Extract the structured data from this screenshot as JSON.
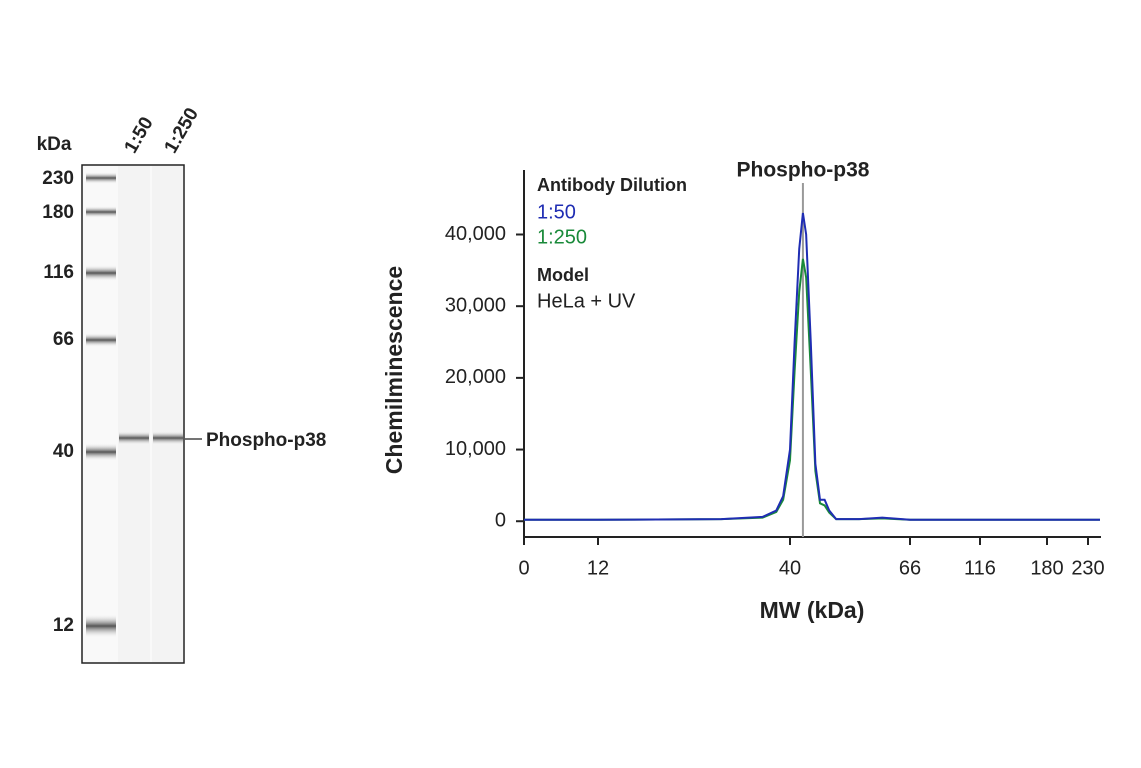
{
  "blot": {
    "unit_label": "kDa",
    "lanes": [
      "1:50",
      "1:250"
    ],
    "ladder": [
      "230",
      "180",
      "116",
      "66",
      "40",
      "12"
    ],
    "band_label": "Phospho-p38"
  },
  "chart_data": {
    "type": "line",
    "title": "Phospho-p38",
    "xlabel": "MW (kDa)",
    "ylabel": "Chemilminescence",
    "legend_title": "Antibody Dilution",
    "model_title": "Model",
    "model": "HeLa + UV",
    "x": [
      0,
      12,
      30,
      36,
      38,
      39,
      40,
      41,
      42,
      42.8,
      43.5,
      44.5,
      45.5,
      46.5,
      47.5,
      48.5,
      50,
      55,
      60,
      66,
      116,
      180,
      230,
      245
    ],
    "series": [
      {
        "name": "1:50",
        "color": "#1f2db3",
        "values": [
          200,
          200,
          300,
          600,
          1500,
          3500,
          10000,
          25000,
          38000,
          43000,
          40000,
          25000,
          8000,
          3000,
          3000,
          1500,
          300,
          300,
          500,
          200,
          200,
          200,
          200,
          200
        ]
      },
      {
        "name": "1:250",
        "color": "#1a8a3a",
        "values": [
          200,
          200,
          300,
          500,
          1300,
          3000,
          8500,
          21000,
          32000,
          36600,
          34000,
          21000,
          7000,
          2500,
          2200,
          1200,
          300,
          300,
          400,
          200,
          200,
          200,
          200,
          200
        ]
      }
    ],
    "marker_x": 42.8,
    "xlim": [
      0,
      245
    ],
    "xticks": [
      0,
      12,
      40,
      66,
      116,
      180,
      230
    ],
    "ylim": [
      -2200,
      49000
    ],
    "yticks": [
      0,
      {
        "value": 10000,
        "label": "10,000"
      },
      {
        "value": 20000,
        "label": "20,000"
      },
      {
        "value": 30000,
        "label": "30,000"
      },
      {
        "value": 40000,
        "label": "40,000"
      }
    ]
  }
}
